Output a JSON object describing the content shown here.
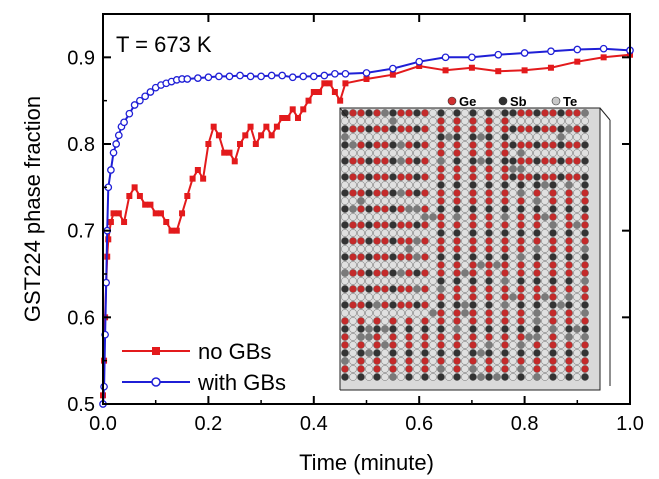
{
  "chart_data": {
    "type": "line",
    "title": "",
    "xlabel": "Time (minute)",
    "ylabel": "GST224 phase fraction",
    "xlim": [
      0.0,
      1.0
    ],
    "ylim": [
      0.5,
      0.95
    ],
    "x_ticks": [
      "0.0",
      "0.2",
      "0.4",
      "0.6",
      "0.8",
      "1.0"
    ],
    "y_ticks": [
      "0.5",
      "0.6",
      "0.7",
      "0.8",
      "0.9"
    ],
    "annotation": "T = 673 K",
    "legend_position": "bottom-left",
    "series": [
      {
        "name": "no GBs",
        "color": "#e31a1c",
        "marker": "square-filled",
        "x": [
          0.0,
          0.002,
          0.004,
          0.006,
          0.008,
          0.01,
          0.015,
          0.02,
          0.03,
          0.04,
          0.05,
          0.06,
          0.07,
          0.08,
          0.09,
          0.1,
          0.11,
          0.12,
          0.13,
          0.14,
          0.15,
          0.16,
          0.17,
          0.18,
          0.19,
          0.2,
          0.21,
          0.22,
          0.23,
          0.24,
          0.25,
          0.26,
          0.27,
          0.28,
          0.29,
          0.3,
          0.31,
          0.32,
          0.33,
          0.34,
          0.35,
          0.36,
          0.37,
          0.38,
          0.39,
          0.4,
          0.41,
          0.42,
          0.43,
          0.44,
          0.45,
          0.46,
          0.5,
          0.55,
          0.6,
          0.65,
          0.7,
          0.75,
          0.8,
          0.85,
          0.9,
          0.95,
          1.0
        ],
        "values": [
          0.51,
          0.55,
          0.6,
          0.64,
          0.67,
          0.69,
          0.71,
          0.72,
          0.72,
          0.71,
          0.74,
          0.75,
          0.74,
          0.73,
          0.73,
          0.72,
          0.72,
          0.71,
          0.7,
          0.7,
          0.72,
          0.74,
          0.76,
          0.77,
          0.76,
          0.8,
          0.82,
          0.81,
          0.79,
          0.79,
          0.78,
          0.8,
          0.81,
          0.82,
          0.8,
          0.81,
          0.82,
          0.81,
          0.82,
          0.83,
          0.83,
          0.84,
          0.83,
          0.84,
          0.85,
          0.86,
          0.86,
          0.87,
          0.87,
          0.86,
          0.85,
          0.87,
          0.875,
          0.88,
          0.89,
          0.885,
          0.888,
          0.884,
          0.885,
          0.888,
          0.895,
          0.9,
          0.903
        ]
      },
      {
        "name": "with GBs",
        "color": "#1f1fd6",
        "marker": "circle-open",
        "x": [
          0.0,
          0.002,
          0.004,
          0.006,
          0.008,
          0.01,
          0.015,
          0.02,
          0.025,
          0.03,
          0.035,
          0.04,
          0.05,
          0.06,
          0.07,
          0.08,
          0.09,
          0.1,
          0.11,
          0.12,
          0.13,
          0.14,
          0.15,
          0.16,
          0.18,
          0.2,
          0.22,
          0.24,
          0.26,
          0.28,
          0.3,
          0.32,
          0.34,
          0.36,
          0.38,
          0.4,
          0.42,
          0.44,
          0.46,
          0.5,
          0.55,
          0.6,
          0.65,
          0.7,
          0.75,
          0.8,
          0.85,
          0.9,
          0.95,
          1.0
        ],
        "values": [
          0.5,
          0.52,
          0.58,
          0.64,
          0.7,
          0.75,
          0.77,
          0.79,
          0.8,
          0.81,
          0.82,
          0.825,
          0.835,
          0.845,
          0.85,
          0.855,
          0.86,
          0.865,
          0.868,
          0.87,
          0.872,
          0.874,
          0.875,
          0.875,
          0.876,
          0.877,
          0.878,
          0.878,
          0.879,
          0.878,
          0.878,
          0.879,
          0.879,
          0.877,
          0.878,
          0.878,
          0.879,
          0.881,
          0.881,
          0.882,
          0.887,
          0.895,
          0.9,
          0.9,
          0.903,
          0.905,
          0.907,
          0.909,
          0.91,
          0.908
        ]
      }
    ],
    "inset": {
      "description": "atomic structure",
      "legend": [
        {
          "label": "Ge",
          "color": "#d03030"
        },
        {
          "label": "Sb",
          "color": "#303030"
        },
        {
          "label": "Te",
          "color": "#c8c8c8"
        }
      ]
    }
  }
}
